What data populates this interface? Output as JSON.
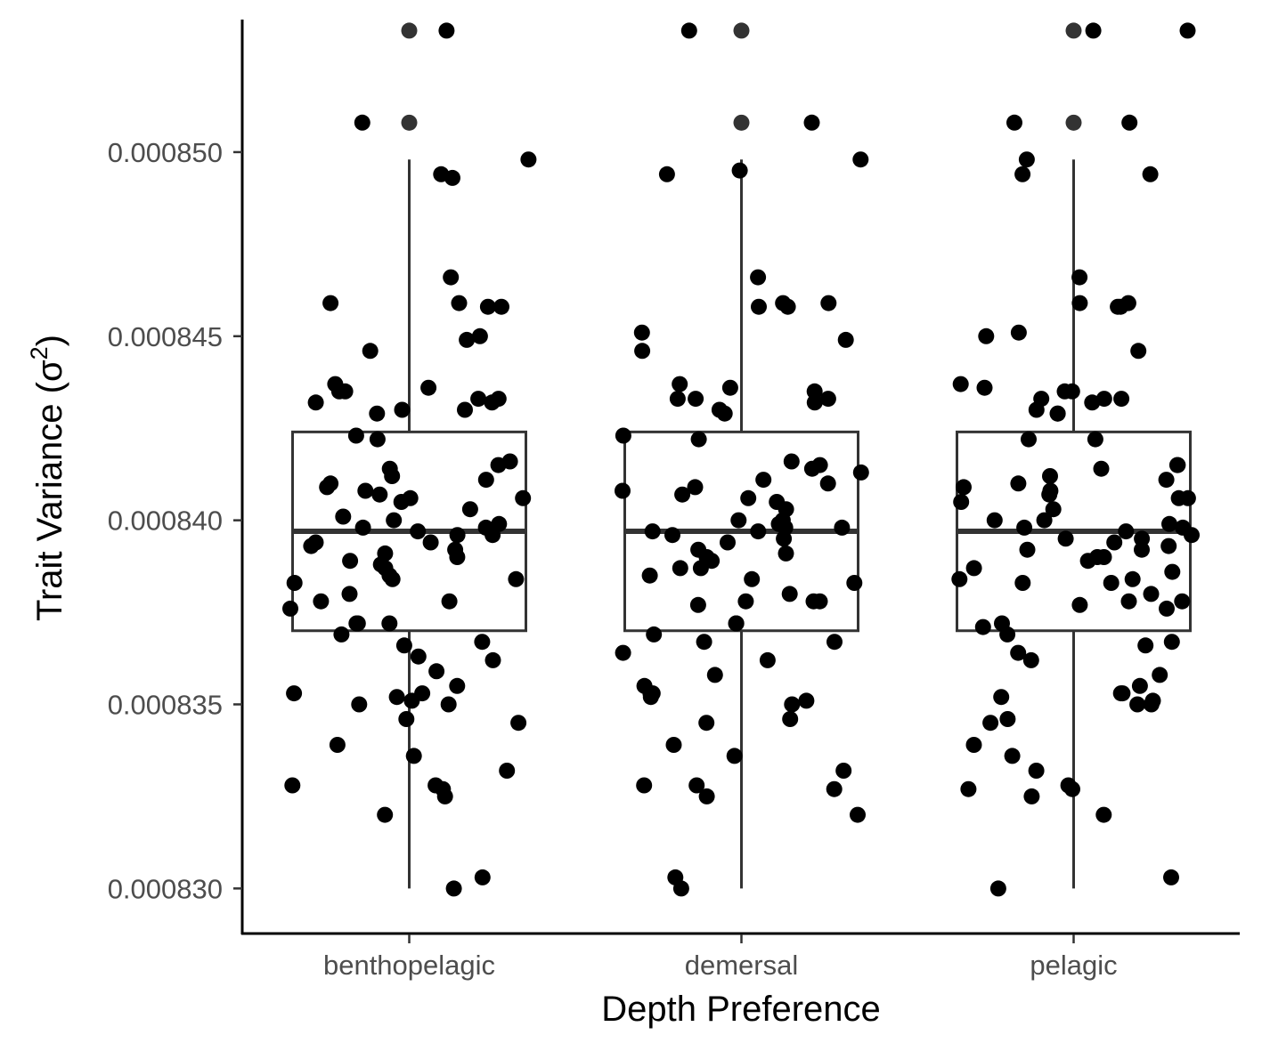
{
  "chart_data": {
    "type": "box",
    "xlabel": "Depth Preference",
    "ylabel": "Trait Variance (σ",
    "ylabel_superscript": "2",
    "ylabel_close": ")",
    "ylim": [
      0.0008288,
      0.0008536
    ],
    "y_ticks": [
      0.00083,
      0.000835,
      0.00084,
      0.000845,
      0.00085
    ],
    "y_tick_labels": [
      "0.000830",
      "0.000835",
      "0.000840",
      "0.000845",
      "0.000850"
    ],
    "categories": [
      "benthopelagic",
      "demersal",
      "pelagic"
    ],
    "boxes": [
      {
        "category": "benthopelagic",
        "min": 0.00083,
        "q1": 0.000837,
        "median": 0.0008397,
        "q3": 0.0008424,
        "max": 0.0008498,
        "outliers": [
          0.0008508,
          0.0008533
        ]
      },
      {
        "category": "demersal",
        "min": 0.00083,
        "q1": 0.000837,
        "median": 0.0008397,
        "q3": 0.0008424,
        "max": 0.0008498,
        "outliers": [
          0.0008508,
          0.0008533
        ]
      },
      {
        "category": "pelagic",
        "min": 0.00083,
        "q1": 0.000837,
        "median": 0.0008397,
        "q3": 0.0008424,
        "max": 0.0008498,
        "outliers": [
          0.0008508,
          0.0008533
        ]
      }
    ],
    "points": [
      {
        "category": "benthopelagic",
        "values": [
          0.0008533,
          0.0008508,
          0.0008494,
          0.0008498,
          0.0008493,
          0.0008466,
          0.0008459,
          0.0008458,
          0.0008459,
          0.0008458,
          0.0008449,
          0.0008446,
          0.000845,
          0.0008437,
          0.0008436,
          0.0008435,
          0.0008435,
          0.0008433,
          0.0008433,
          0.0008432,
          0.0008432,
          0.000843,
          0.000843,
          0.0008429,
          0.0008423,
          0.0008422,
          0.0008416,
          0.0008415,
          0.0008414,
          0.0008412,
          0.0008411,
          0.000841,
          0.0008409,
          0.0008408,
          0.0008407,
          0.0008406,
          0.0008406,
          0.0008405,
          0.0008403,
          0.0008401,
          0.00084,
          0.0008399,
          0.0008398,
          0.0008398,
          0.0008397,
          0.0008396,
          0.0008396,
          0.0008394,
          0.0008394,
          0.0008393,
          0.0008392,
          0.0008391,
          0.000839,
          0.0008389,
          0.0008388,
          0.0008387,
          0.0008385,
          0.0008384,
          0.0008384,
          0.0008383,
          0.000838,
          0.0008378,
          0.0008378,
          0.0008376,
          0.0008372,
          0.0008372,
          0.0008372,
          0.0008369,
          0.0008367,
          0.0008366,
          0.0008363,
          0.0008362,
          0.0008359,
          0.0008355,
          0.0008353,
          0.0008353,
          0.0008352,
          0.0008351,
          0.000835,
          0.000835,
          0.0008346,
          0.0008345,
          0.0008339,
          0.0008336,
          0.0008332,
          0.0008328,
          0.0008328,
          0.0008327,
          0.0008325,
          0.000832,
          0.0008303,
          0.00083
        ]
      },
      {
        "category": "demersal",
        "values": [
          0.0008533,
          0.0008508,
          0.0008498,
          0.0008495,
          0.0008494,
          0.0008466,
          0.0008459,
          0.0008459,
          0.0008458,
          0.0008458,
          0.0008451,
          0.0008449,
          0.0008446,
          0.0008437,
          0.0008436,
          0.0008435,
          0.0008433,
          0.0008433,
          0.0008433,
          0.0008432,
          0.000843,
          0.0008429,
          0.0008423,
          0.0008422,
          0.0008416,
          0.0008415,
          0.0008414,
          0.0008413,
          0.0008411,
          0.000841,
          0.0008409,
          0.0008408,
          0.0008407,
          0.0008406,
          0.0008405,
          0.0008403,
          0.00084,
          0.00084,
          0.0008399,
          0.0008398,
          0.0008398,
          0.0008397,
          0.0008397,
          0.0008396,
          0.0008395,
          0.0008394,
          0.0008392,
          0.0008391,
          0.000839,
          0.0008389,
          0.0008387,
          0.0008387,
          0.0008385,
          0.0008384,
          0.0008383,
          0.000838,
          0.0008378,
          0.0008378,
          0.0008378,
          0.0008377,
          0.0008372,
          0.0008372,
          0.0008369,
          0.0008367,
          0.0008367,
          0.0008364,
          0.0008362,
          0.0008358,
          0.0008355,
          0.0008353,
          0.0008353,
          0.0008352,
          0.0008351,
          0.000835,
          0.0008346,
          0.0008345,
          0.0008339,
          0.0008336,
          0.0008332,
          0.0008328,
          0.0008328,
          0.0008327,
          0.0008325,
          0.000832,
          0.0008303,
          0.00083
        ]
      },
      {
        "category": "pelagic",
        "values": [
          0.0008533,
          0.0008533,
          0.0008508,
          0.0008508,
          0.0008498,
          0.0008494,
          0.0008494,
          0.0008466,
          0.0008459,
          0.0008459,
          0.0008458,
          0.0008458,
          0.0008451,
          0.000845,
          0.0008446,
          0.0008437,
          0.0008436,
          0.0008435,
          0.0008435,
          0.0008433,
          0.0008433,
          0.0008433,
          0.0008432,
          0.000843,
          0.0008429,
          0.0008429,
          0.0008422,
          0.0008422,
          0.0008415,
          0.0008415,
          0.0008414,
          0.0008412,
          0.0008411,
          0.000841,
          0.0008409,
          0.0008408,
          0.0008407,
          0.0008406,
          0.0008406,
          0.0008405,
          0.0008403,
          0.00084,
          0.00084,
          0.0008399,
          0.0008398,
          0.0008398,
          0.0008397,
          0.0008396,
          0.0008395,
          0.0008395,
          0.0008394,
          0.0008393,
          0.0008392,
          0.0008392,
          0.000839,
          0.000839,
          0.0008389,
          0.0008387,
          0.0008386,
          0.0008384,
          0.0008384,
          0.0008383,
          0.0008383,
          0.000838,
          0.0008378,
          0.0008378,
          0.0008377,
          0.0008376,
          0.0008372,
          0.0008371,
          0.0008369,
          0.0008367,
          0.0008366,
          0.0008364,
          0.0008362,
          0.0008358,
          0.0008355,
          0.0008353,
          0.0008353,
          0.0008352,
          0.0008351,
          0.000835,
          0.000835,
          0.0008346,
          0.0008345,
          0.0008339,
          0.0008336,
          0.0008332,
          0.0008328,
          0.0008327,
          0.0008327,
          0.0008325,
          0.000832,
          0.0008303,
          0.00083
        ]
      }
    ],
    "grid": false,
    "legend": "none"
  }
}
